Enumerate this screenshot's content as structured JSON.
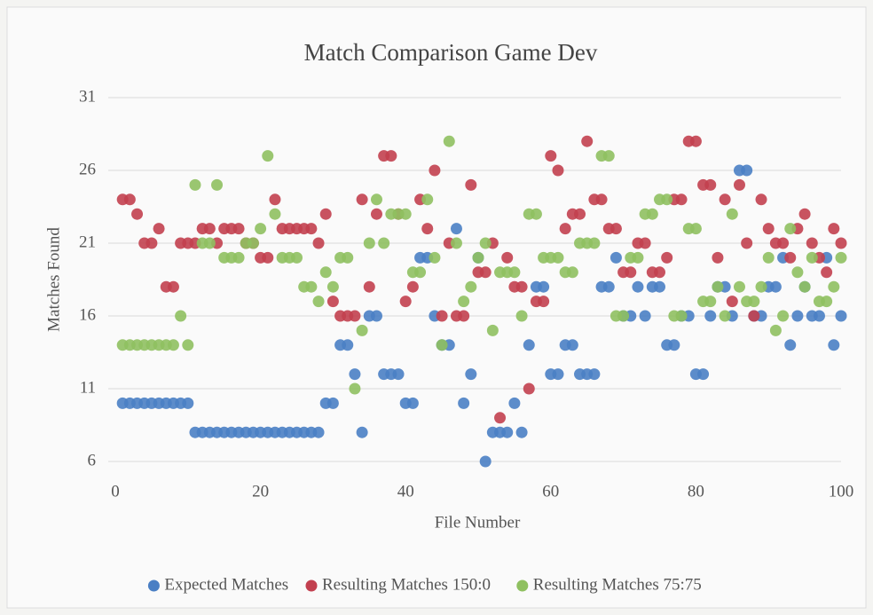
{
  "chart_data": {
    "type": "scatter",
    "title": "Match Comparison Game Dev",
    "x_label": "File Number",
    "y_label": "Matches Found",
    "x": [
      1,
      2,
      3,
      4,
      5,
      6,
      7,
      8,
      9,
      10,
      11,
      12,
      13,
      14,
      15,
      16,
      17,
      18,
      19,
      20,
      21,
      22,
      23,
      24,
      25,
      26,
      27,
      28,
      29,
      30,
      31,
      32,
      33,
      34,
      35,
      36,
      37,
      38,
      39,
      40,
      41,
      42,
      43,
      44,
      45,
      46,
      47,
      48,
      49,
      50,
      51,
      52,
      53,
      54,
      55,
      56,
      57,
      58,
      59,
      60,
      61,
      62,
      63,
      64,
      65,
      66,
      67,
      68,
      69,
      70,
      71,
      72,
      73,
      74,
      75,
      76,
      77,
      78,
      79,
      80,
      81,
      82,
      83,
      84,
      85,
      86,
      87,
      88,
      89,
      90,
      91,
      92,
      93,
      94,
      95,
      96,
      97,
      98,
      99,
      100
    ],
    "series": [
      {
        "name": "Expected Matches",
        "color": "#4a7fc4",
        "values": [
          10,
          10,
          10,
          10,
          10,
          10,
          10,
          10,
          10,
          10,
          8,
          8,
          8,
          8,
          8,
          8,
          8,
          8,
          8,
          8,
          8,
          8,
          8,
          8,
          8,
          8,
          8,
          8,
          10,
          10,
          14,
          14,
          12,
          8,
          16,
          16,
          12,
          12,
          12,
          10,
          10,
          20,
          20,
          16,
          14,
          14,
          22,
          10,
          12,
          20,
          6,
          8,
          8,
          8,
          10,
          8,
          14,
          18,
          18,
          12,
          12,
          14,
          14,
          12,
          12,
          12,
          18,
          18,
          20,
          16,
          16,
          18,
          16,
          18,
          18,
          14,
          14,
          16,
          16,
          12,
          12,
          16,
          18,
          18,
          16,
          26,
          26,
          16,
          16,
          18,
          18,
          20,
          14,
          16,
          18,
          16,
          16,
          20,
          14,
          16
        ]
      },
      {
        "name": "Resulting Matches 150:0",
        "color": "#c2404f",
        "values": [
          24,
          24,
          23,
          21,
          21,
          22,
          18,
          18,
          21,
          21,
          21,
          22,
          22,
          21,
          22,
          22,
          22,
          21,
          21,
          20,
          20,
          24,
          22,
          22,
          22,
          22,
          22,
          21,
          23,
          17,
          16,
          16,
          16,
          24,
          18,
          23,
          27,
          27,
          23,
          17,
          18,
          24,
          22,
          26,
          16,
          21,
          16,
          16,
          25,
          19,
          19,
          21,
          9,
          20,
          18,
          18,
          11,
          17,
          17,
          27,
          26,
          22,
          23,
          23,
          28,
          24,
          24,
          22,
          22,
          19,
          19,
          21,
          21,
          19,
          19,
          20,
          24,
          24,
          28,
          28,
          25,
          25,
          20,
          24,
          17,
          25,
          21,
          16,
          24,
          22,
          21,
          21,
          20,
          22,
          23,
          21,
          20,
          19,
          22,
          21
        ]
      },
      {
        "name": "Resulting Matches 75:75",
        "color": "#8fc060",
        "values": [
          14,
          14,
          14,
          14,
          14,
          14,
          14,
          14,
          16,
          14,
          25,
          21,
          21,
          25,
          20,
          20,
          20,
          21,
          21,
          22,
          27,
          23,
          20,
          20,
          20,
          18,
          18,
          17,
          19,
          18,
          20,
          20,
          11,
          15,
          21,
          24,
          21,
          23,
          23,
          23,
          19,
          19,
          24,
          20,
          14,
          28,
          21,
          17,
          18,
          20,
          21,
          15,
          19,
          19,
          19,
          16,
          23,
          23,
          20,
          20,
          20,
          19,
          19,
          21,
          21,
          21,
          27,
          27,
          16,
          16,
          20,
          20,
          23,
          23,
          24,
          24,
          16,
          16,
          22,
          22,
          17,
          17,
          18,
          16,
          23,
          18,
          17,
          17,
          18,
          20,
          15,
          16,
          22,
          19,
          18,
          20,
          17,
          17,
          18,
          20
        ]
      }
    ],
    "xlim": [
      0,
      100
    ],
    "xticks": [
      0,
      20,
      40,
      60,
      80,
      100
    ],
    "ylim": [
      6,
      31
    ],
    "yticks": [
      6,
      11,
      16,
      21,
      26,
      31
    ],
    "grid": true,
    "legend": "bottom"
  }
}
